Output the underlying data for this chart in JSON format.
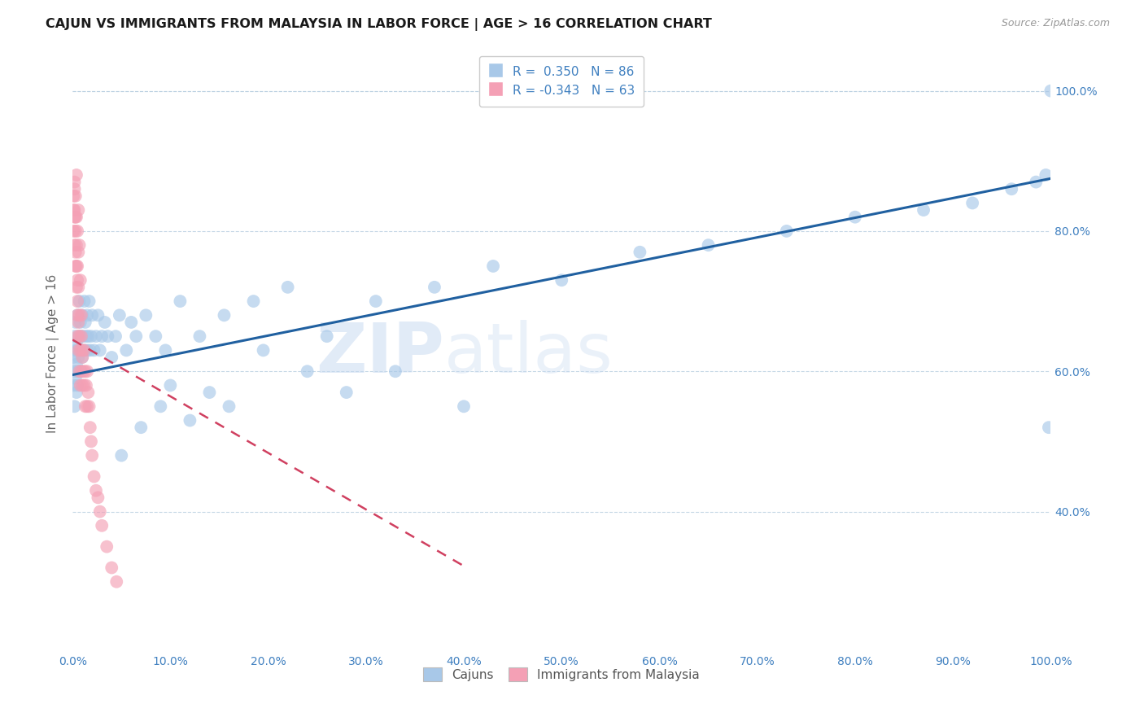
{
  "title": "CAJUN VS IMMIGRANTS FROM MALAYSIA IN LABOR FORCE | AGE > 16 CORRELATION CHART",
  "source": "Source: ZipAtlas.com",
  "ylabel": "In Labor Force | Age > 16",
  "watermark": "ZIPatlas",
  "legend_blue_R": "R =  0.350",
  "legend_blue_N": "N = 86",
  "legend_pink_R": "R = -0.343",
  "legend_pink_N": "N = 63",
  "legend_label_blue": "Cajuns",
  "legend_label_pink": "Immigrants from Malaysia",
  "blue_color": "#a8c8e8",
  "pink_color": "#f4a0b5",
  "trend_blue_color": "#2060a0",
  "trend_pink_color": "#d04060",
  "accent_color": "#4080c0",
  "xlim": [
    0.0,
    1.0
  ],
  "ylim": [
    0.2,
    1.05
  ],
  "xticks": [
    0.0,
    0.1,
    0.2,
    0.3,
    0.4,
    0.5,
    0.6,
    0.7,
    0.8,
    0.9,
    1.0
  ],
  "yticks": [
    0.4,
    0.6,
    0.8,
    1.0
  ],
  "blue_trend_x0": 0.0,
  "blue_trend_y0": 0.595,
  "blue_trend_x1": 1.0,
  "blue_trend_y1": 0.875,
  "pink_trend_x0": 0.0,
  "pink_trend_y0": 0.645,
  "pink_trend_x1": 0.155,
  "pink_trend_y1": 0.52,
  "blue_x": [
    0.001,
    0.001,
    0.002,
    0.002,
    0.002,
    0.003,
    0.003,
    0.003,
    0.004,
    0.004,
    0.004,
    0.005,
    0.005,
    0.005,
    0.005,
    0.006,
    0.006,
    0.007,
    0.007,
    0.008,
    0.008,
    0.009,
    0.009,
    0.01,
    0.01,
    0.011,
    0.012,
    0.012,
    0.013,
    0.014,
    0.015,
    0.015,
    0.016,
    0.017,
    0.018,
    0.019,
    0.02,
    0.022,
    0.024,
    0.026,
    0.028,
    0.03,
    0.033,
    0.036,
    0.04,
    0.044,
    0.048,
    0.055,
    0.06,
    0.065,
    0.075,
    0.085,
    0.095,
    0.11,
    0.13,
    0.155,
    0.185,
    0.22,
    0.26,
    0.31,
    0.37,
    0.43,
    0.5,
    0.58,
    0.65,
    0.73,
    0.8,
    0.87,
    0.92,
    0.96,
    0.985,
    0.995,
    0.998,
    0.05,
    0.07,
    0.09,
    0.1,
    0.12,
    0.14,
    0.16,
    0.195,
    0.24,
    0.28,
    0.33,
    0.4,
    1.0
  ],
  "blue_y": [
    0.62,
    0.58,
    0.65,
    0.6,
    0.55,
    0.63,
    0.59,
    0.67,
    0.61,
    0.57,
    0.64,
    0.6,
    0.63,
    0.58,
    0.68,
    0.65,
    0.62,
    0.7,
    0.6,
    0.67,
    0.63,
    0.65,
    0.6,
    0.62,
    0.68,
    0.65,
    0.7,
    0.63,
    0.67,
    0.65,
    0.63,
    0.68,
    0.65,
    0.7,
    0.63,
    0.65,
    0.68,
    0.63,
    0.65,
    0.68,
    0.63,
    0.65,
    0.67,
    0.65,
    0.62,
    0.65,
    0.68,
    0.63,
    0.67,
    0.65,
    0.68,
    0.65,
    0.63,
    0.7,
    0.65,
    0.68,
    0.7,
    0.72,
    0.65,
    0.7,
    0.72,
    0.75,
    0.73,
    0.77,
    0.78,
    0.8,
    0.82,
    0.83,
    0.84,
    0.86,
    0.87,
    0.88,
    0.52,
    0.48,
    0.52,
    0.55,
    0.58,
    0.53,
    0.57,
    0.55,
    0.63,
    0.6,
    0.57,
    0.6,
    0.55,
    1.0
  ],
  "pink_x": [
    0.001,
    0.001,
    0.001,
    0.002,
    0.002,
    0.002,
    0.002,
    0.003,
    0.003,
    0.003,
    0.003,
    0.004,
    0.004,
    0.004,
    0.005,
    0.005,
    0.005,
    0.005,
    0.005,
    0.006,
    0.006,
    0.006,
    0.007,
    0.007,
    0.007,
    0.008,
    0.008,
    0.009,
    0.009,
    0.01,
    0.01,
    0.01,
    0.011,
    0.012,
    0.012,
    0.013,
    0.013,
    0.014,
    0.015,
    0.015,
    0.016,
    0.017,
    0.018,
    0.019,
    0.02,
    0.022,
    0.024,
    0.026,
    0.028,
    0.03,
    0.035,
    0.04,
    0.045,
    0.002,
    0.003,
    0.004,
    0.004,
    0.005,
    0.006,
    0.006,
    0.007,
    0.008,
    0.009
  ],
  "pink_y": [
    0.83,
    0.8,
    0.85,
    0.82,
    0.78,
    0.83,
    0.86,
    0.8,
    0.75,
    0.82,
    0.77,
    0.75,
    0.78,
    0.72,
    0.73,
    0.68,
    0.75,
    0.7,
    0.65,
    0.72,
    0.67,
    0.63,
    0.68,
    0.65,
    0.6,
    0.63,
    0.58,
    0.6,
    0.65,
    0.62,
    0.58,
    0.63,
    0.6,
    0.58,
    0.63,
    0.6,
    0.55,
    0.58,
    0.55,
    0.6,
    0.57,
    0.55,
    0.52,
    0.5,
    0.48,
    0.45,
    0.43,
    0.42,
    0.4,
    0.38,
    0.35,
    0.32,
    0.3,
    0.87,
    0.85,
    0.82,
    0.88,
    0.8,
    0.83,
    0.77,
    0.78,
    0.73,
    0.68
  ]
}
